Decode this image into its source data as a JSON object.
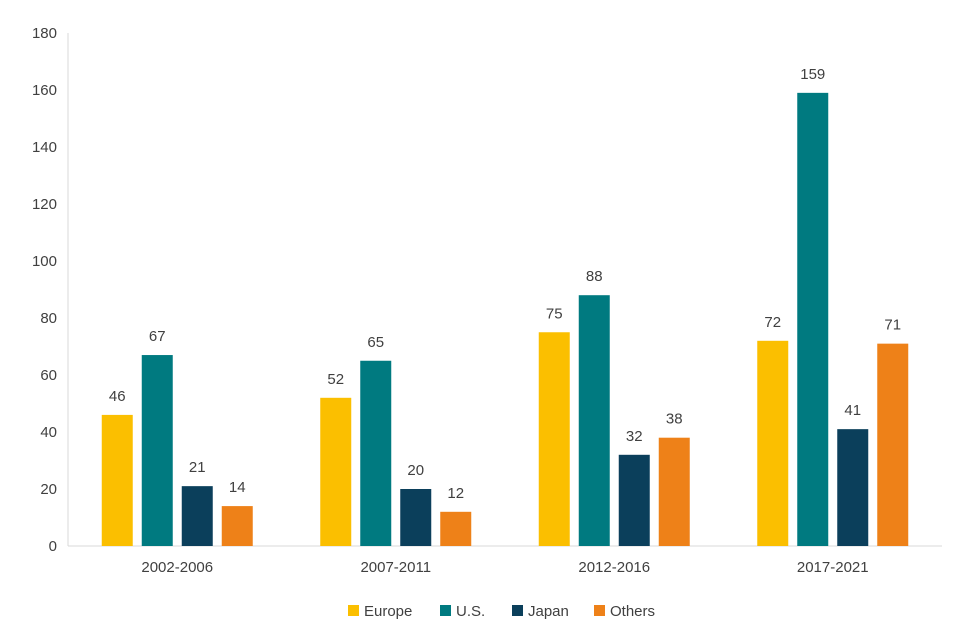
{
  "chart_data": {
    "type": "bar",
    "title": "",
    "xlabel": "",
    "ylabel": "",
    "ylim": [
      0,
      180
    ],
    "yticks": [
      0,
      20,
      40,
      60,
      80,
      100,
      120,
      140,
      160,
      180
    ],
    "grid": false,
    "legend_position": "bottom",
    "categories": [
      "2002-2006",
      "2007-2011",
      "2012-2016",
      "2017-2021"
    ],
    "series": [
      {
        "name": "Europe",
        "color": "#FBBF00",
        "values": [
          46,
          52,
          75,
          72
        ]
      },
      {
        "name": "U.S.",
        "color": "#007A80",
        "values": [
          67,
          65,
          88,
          159
        ]
      },
      {
        "name": "Japan",
        "color": "#0B3F5B",
        "values": [
          21,
          20,
          32,
          41
        ]
      },
      {
        "name": "Others",
        "color": "#EE8118",
        "values": [
          14,
          12,
          38,
          71
        ]
      }
    ]
  }
}
